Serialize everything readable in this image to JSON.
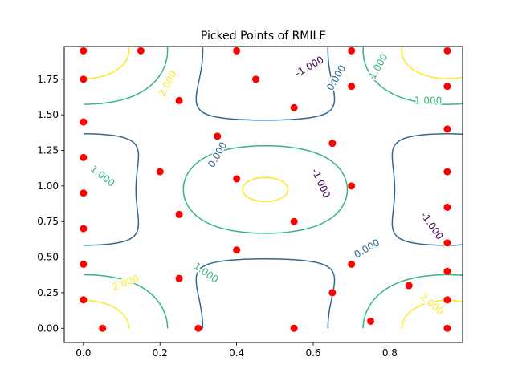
{
  "chart_data": {
    "type": "scatter",
    "title": "Picked Points of RMILE",
    "xlabel": "",
    "ylabel": "",
    "xlim": [
      -0.05,
      0.99
    ],
    "ylim": [
      -0.1,
      1.98
    ],
    "xticks": [
      "0.0",
      "0.2",
      "0.4",
      "0.6",
      "0.8"
    ],
    "yticks": [
      "0.00",
      "0.25",
      "0.50",
      "0.75",
      "1.00",
      "1.25",
      "1.50",
      "1.75"
    ],
    "grid": false,
    "colors": {
      "points": "#ff0000",
      "level_-1": "#440154",
      "level_0": "#31688e",
      "level_1": "#35b779",
      "level_2": "#fde725"
    },
    "series": [
      {
        "x": [
          0.0,
          0.0,
          0.0,
          0.0,
          0.0,
          0.0,
          0.0,
          0.0,
          0.05,
          0.15,
          0.2,
          0.25,
          0.25,
          0.25,
          0.3,
          0.35,
          0.4,
          0.4,
          0.4,
          0.45,
          0.55,
          0.55,
          0.55,
          0.65,
          0.65,
          0.7,
          0.7,
          0.7,
          0.7,
          0.75,
          0.85,
          0.95,
          0.95,
          0.95,
          0.95,
          0.95,
          0.95,
          0.95,
          0.95,
          0.95
        ],
        "y": [
          1.95,
          1.75,
          1.45,
          1.2,
          0.95,
          0.7,
          0.45,
          0.2,
          0.0,
          1.95,
          1.1,
          1.6,
          0.8,
          0.35,
          0.0,
          1.35,
          1.95,
          1.05,
          0.55,
          1.75,
          1.55,
          0.75,
          0.0,
          1.3,
          0.25,
          1.95,
          1.7,
          1.0,
          0.45,
          0.05,
          0.3,
          1.95,
          1.7,
          1.4,
          1.1,
          0.85,
          0.6,
          0.4,
          0.2,
          0.0
        ]
      }
    ],
    "contour_levels": [
      -1.0,
      0.0,
      1.0,
      2.0
    ],
    "contour_labels": [
      "2.000",
      "1.000",
      "-1.000",
      "0.000",
      "0.000",
      "1.000",
      "1.000",
      "0.000",
      "-1.000",
      "1.000",
      "2.000",
      "-1.000",
      "2.000"
    ]
  }
}
